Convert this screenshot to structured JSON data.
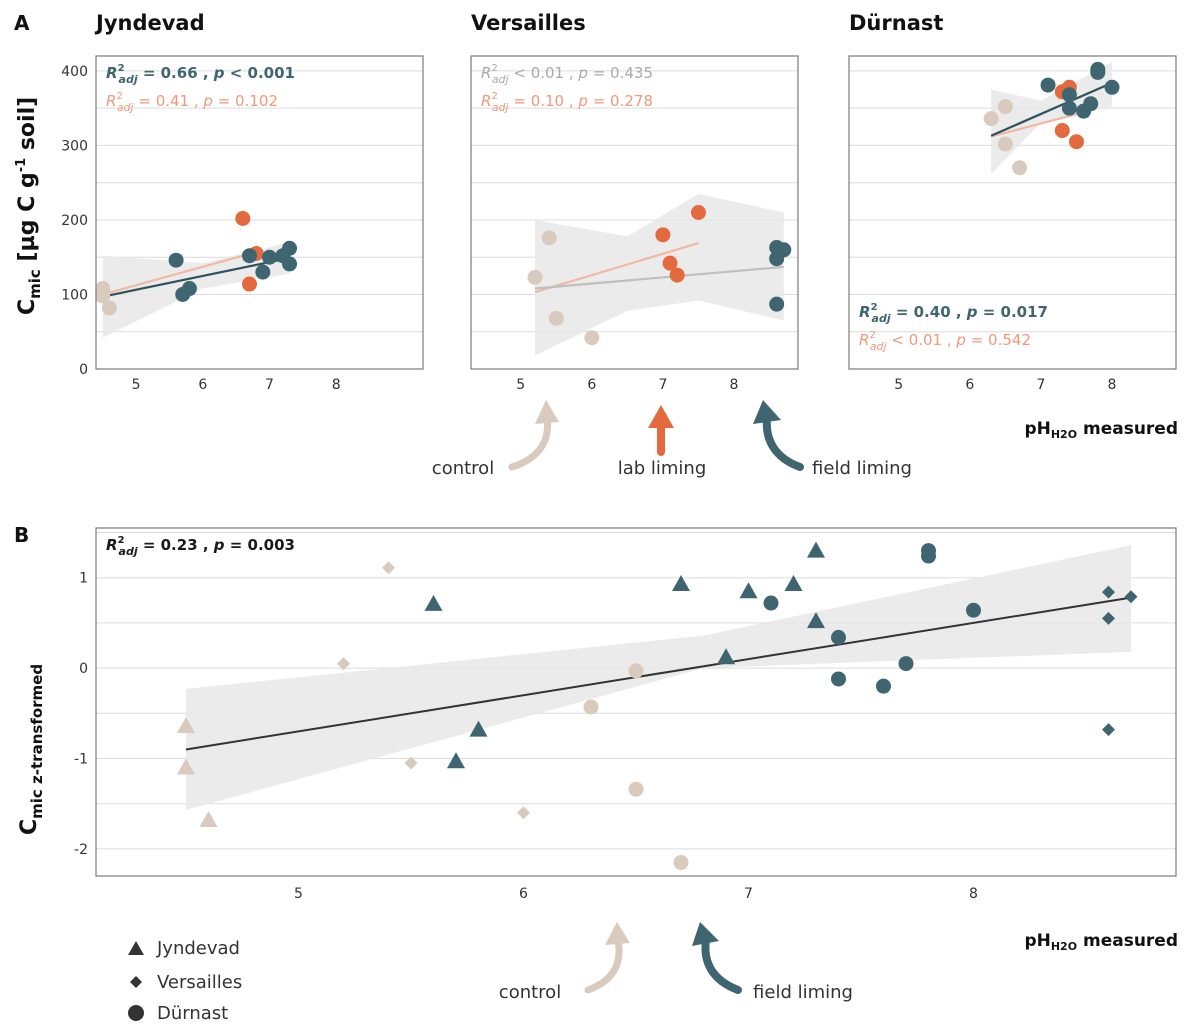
{
  "panels": {
    "a_letter": "A",
    "b_letter": "B",
    "a_ylabel": {
      "main": "C",
      "sub": "mic",
      "rest": " [µg C g",
      "sup": "-1",
      "end": " soil]"
    },
    "b_ylabel": {
      "main": "C",
      "sub": "mic",
      "rest": " z-transformed"
    },
    "xlabel": {
      "main": "pH",
      "sub": "H2O",
      "rest": " measured"
    }
  },
  "colors": {
    "control": "#d8cbbd",
    "lab_liming": "#e36a3f",
    "field_liming": "#3f6670",
    "lab_line": "#f2b8a4",
    "control_line": "#bfbfbf",
    "field_line": "#2f535c",
    "ribbon": "#e8e8e8",
    "overall_line": "#333333"
  },
  "arrows_a": [
    "control",
    "lab liming",
    "field liming"
  ],
  "arrows_b": [
    "control",
    "field liming"
  ],
  "legend": [
    "Jyndevad",
    "Versailles",
    "Dürnast"
  ],
  "chart_data": [
    {
      "type": "scatter",
      "title": "Jyndevad",
      "xlim": [
        4.4,
        9.3
      ],
      "ylim": [
        0,
        420
      ],
      "xticks": [
        5,
        6,
        7,
        8
      ],
      "yticks": [
        0,
        100,
        200,
        300,
        400
      ],
      "series": [
        {
          "name": "control",
          "points": [
            [
              4.5,
              108
            ],
            [
              4.5,
              98
            ],
            [
              4.6,
              82
            ]
          ]
        },
        {
          "name": "lab liming",
          "points": [
            [
              6.6,
              202
            ],
            [
              6.8,
              155
            ],
            [
              6.7,
              114
            ]
          ]
        },
        {
          "name": "field liming",
          "points": [
            [
              5.6,
              146
            ],
            [
              5.7,
              100
            ],
            [
              5.8,
              108
            ],
            [
              6.7,
              152
            ],
            [
              6.9,
              130
            ],
            [
              7.0,
              150
            ],
            [
              7.2,
              152
            ],
            [
              7.3,
              162
            ],
            [
              7.3,
              141
            ]
          ]
        }
      ],
      "fits": [
        {
          "series": "lab liming",
          "x": [
            4.5,
            6.8
          ],
          "y": [
            100,
            157
          ]
        },
        {
          "series": "field liming",
          "x": [
            4.5,
            7.3
          ],
          "y": [
            97,
            149
          ],
          "ribbon_x": [
            4.5,
            6.0,
            7.3
          ],
          "ribbon_lo": [
            42,
            108,
            128
          ],
          "ribbon_hi": [
            152,
            142,
            170
          ]
        }
      ],
      "annotations": [
        {
          "series": "field liming",
          "r2": "0.66",
          "p": "< 0.001",
          "bold": true
        },
        {
          "series": "lab liming",
          "r2": "0.41",
          "p": "= 0.102",
          "bold": false
        }
      ],
      "annotation_position": "top-left"
    },
    {
      "type": "scatter",
      "title": "Versailles",
      "xlim": [
        4.3,
        8.9
      ],
      "ylim": [
        0,
        420
      ],
      "xticks": [
        5,
        6,
        7,
        8
      ],
      "yticks": [
        0,
        100,
        200,
        300,
        400
      ],
      "series": [
        {
          "name": "control",
          "points": [
            [
              5.2,
              123
            ],
            [
              5.4,
              176
            ],
            [
              5.5,
              68
            ],
            [
              6.0,
              42
            ]
          ]
        },
        {
          "name": "lab liming",
          "points": [
            [
              7.0,
              180
            ],
            [
              7.1,
              142
            ],
            [
              7.2,
              126
            ],
            [
              7.5,
              210
            ]
          ]
        },
        {
          "name": "field liming",
          "points": [
            [
              8.6,
              163
            ],
            [
              8.6,
              148
            ],
            [
              8.7,
              160
            ],
            [
              8.6,
              87
            ]
          ]
        }
      ],
      "fits": [
        {
          "series": "lab liming",
          "x": [
            5.2,
            7.5
          ],
          "y": [
            103,
            169
          ]
        },
        {
          "series": "control",
          "x": [
            5.2,
            8.7
          ],
          "y": [
            108,
            137
          ],
          "ribbon_x": [
            5.2,
            6.5,
            7.5,
            8.7
          ],
          "ribbon_lo": [
            18,
            78,
            92,
            65
          ],
          "ribbon_hi": [
            200,
            178,
            235,
            210
          ]
        }
      ],
      "annotations": [
        {
          "series": "control",
          "r2": "< 0.01",
          "p": "= 0.435",
          "bold": false
        },
        {
          "series": "lab liming",
          "r2": "0.10",
          "p": "= 0.278",
          "bold": false
        }
      ],
      "annotation_position": "top-left"
    },
    {
      "type": "scatter",
      "title": "Dürnast",
      "xlim": [
        4.3,
        8.9
      ],
      "ylim": [
        0,
        420
      ],
      "xticks": [
        5,
        6,
        7,
        8
      ],
      "yticks": [
        0,
        100,
        200,
        300,
        400
      ],
      "series": [
        {
          "name": "control",
          "points": [
            [
              6.3,
              336
            ],
            [
              6.5,
              352
            ],
            [
              6.5,
              302
            ],
            [
              6.7,
              270
            ]
          ]
        },
        {
          "name": "lab liming",
          "points": [
            [
              7.3,
              372
            ],
            [
              7.4,
              378
            ],
            [
              7.3,
              320
            ],
            [
              7.5,
              305
            ]
          ]
        },
        {
          "name": "field liming",
          "points": [
            [
              7.1,
              381
            ],
            [
              7.4,
              368
            ],
            [
              7.4,
              350
            ],
            [
              7.6,
              346
            ],
            [
              7.7,
              356
            ],
            [
              7.8,
              402
            ],
            [
              7.8,
              398
            ],
            [
              8.0,
              378
            ]
          ]
        }
      ],
      "fits": [
        {
          "series": "lab liming",
          "x": [
            6.3,
            7.5
          ],
          "y": [
            312,
            342
          ]
        },
        {
          "series": "field liming",
          "x": [
            6.3,
            8.0
          ],
          "y": [
            313,
            384
          ],
          "ribbon_x": [
            6.3,
            7.0,
            8.0
          ],
          "ribbon_lo": [
            262,
            330,
            352
          ],
          "ribbon_hi": [
            375,
            360,
            412
          ]
        }
      ],
      "annotations": [
        {
          "series": "field liming",
          "r2": "0.40",
          "p": "= 0.017",
          "bold": true
        },
        {
          "series": "lab liming",
          "r2": "< 0.01",
          "p": "= 0.542",
          "bold": false
        }
      ],
      "annotation_position": "bottom-left"
    },
    {
      "type": "scatter",
      "xlim": [
        4.1,
        8.9
      ],
      "ylim": [
        -2.3,
        1.55
      ],
      "xticks": [
        5,
        6,
        7,
        8
      ],
      "yticks": [
        -2,
        -1,
        0,
        1
      ],
      "series": [
        {
          "name": "Jyndevad",
          "marker": "triangle",
          "points": [
            {
              "x": 4.5,
              "y": -0.64,
              "g": "control"
            },
            {
              "x": 4.5,
              "y": -1.1,
              "g": "control"
            },
            {
              "x": 4.6,
              "y": -1.68,
              "g": "control"
            },
            {
              "x": 5.6,
              "y": 0.71,
              "g": "field"
            },
            {
              "x": 5.7,
              "y": -1.03,
              "g": "field"
            },
            {
              "x": 5.8,
              "y": -0.68,
              "g": "field"
            },
            {
              "x": 6.7,
              "y": 0.93,
              "g": "field"
            },
            {
              "x": 6.9,
              "y": 0.12,
              "g": "field"
            },
            {
              "x": 7.0,
              "y": 0.85,
              "g": "field"
            },
            {
              "x": 7.2,
              "y": 0.93,
              "g": "field"
            },
            {
              "x": 7.3,
              "y": 1.3,
              "g": "field"
            },
            {
              "x": 7.3,
              "y": 0.52,
              "g": "field"
            }
          ]
        },
        {
          "name": "Versailles",
          "marker": "diamond",
          "points": [
            {
              "x": 5.2,
              "y": 0.05,
              "g": "control"
            },
            {
              "x": 5.4,
              "y": 1.11,
              "g": "control"
            },
            {
              "x": 5.5,
              "y": -1.05,
              "g": "control"
            },
            {
              "x": 6.0,
              "y": -1.6,
              "g": "control"
            },
            {
              "x": 8.6,
              "y": 0.84,
              "g": "field"
            },
            {
              "x": 8.6,
              "y": 0.55,
              "g": "field"
            },
            {
              "x": 8.7,
              "y": 0.79,
              "g": "field"
            },
            {
              "x": 8.6,
              "y": -0.68,
              "g": "field"
            }
          ]
        },
        {
          "name": "Dürnast",
          "marker": "circle",
          "points": [
            {
              "x": 6.3,
              "y": -0.43,
              "g": "control"
            },
            {
              "x": 6.5,
              "y": -0.03,
              "g": "control"
            },
            {
              "x": 6.5,
              "y": -1.34,
              "g": "control"
            },
            {
              "x": 6.7,
              "y": -2.15,
              "g": "control"
            },
            {
              "x": 7.1,
              "y": 0.72,
              "g": "field"
            },
            {
              "x": 7.4,
              "y": 0.34,
              "g": "field"
            },
            {
              "x": 7.4,
              "y": -0.12,
              "g": "field"
            },
            {
              "x": 7.6,
              "y": -0.2,
              "g": "field"
            },
            {
              "x": 7.7,
              "y": 0.05,
              "g": "field"
            },
            {
              "x": 7.8,
              "y": 1.3,
              "g": "field"
            },
            {
              "x": 7.8,
              "y": 1.24,
              "g": "field"
            },
            {
              "x": 8.0,
              "y": 0.64,
              "g": "field"
            }
          ]
        }
      ],
      "fits": [
        {
          "series": "overall",
          "x": [
            4.5,
            8.7
          ],
          "y": [
            -0.9,
            0.78
          ],
          "ribbon_x": [
            4.5,
            6.8,
            8.7
          ],
          "ribbon_lo": [
            -1.57,
            0.0,
            0.18
          ],
          "ribbon_hi": [
            -0.23,
            0.36,
            1.36
          ]
        }
      ],
      "annotations": [
        {
          "series": "overall",
          "r2": "0.23",
          "p": "= 0.003",
          "bold": true
        }
      ],
      "annotation_position": "top-left"
    }
  ]
}
